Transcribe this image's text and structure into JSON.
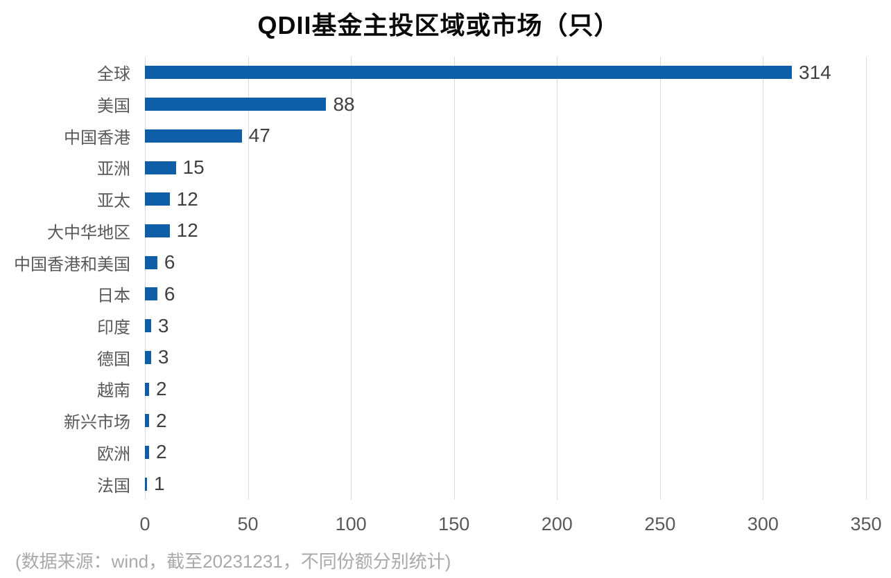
{
  "title": "QDII基金主投区域或市场（只）",
  "footnote": "(数据来源：wind，截至20231231，不同份额分别统计)",
  "colors": {
    "bar": "#0e5fa8",
    "gridline": "#d9d9d9",
    "title": "#0a0a0a",
    "category_label": "#595959",
    "value_label": "#404040",
    "axis_label": "#595959",
    "footnote": "#a9a9a9"
  },
  "chart_data": {
    "type": "bar",
    "orientation": "horizontal",
    "title": "QDII基金主投区域或市场（只）",
    "categories": [
      "全球",
      "美国",
      "中国香港",
      "亚洲",
      "亚太",
      "大中华地区",
      "中国香港和美国",
      "日本",
      "印度",
      "德国",
      "越南",
      "新兴市场",
      "欧洲",
      "法国"
    ],
    "values": [
      314,
      88,
      47,
      15,
      12,
      12,
      6,
      6,
      3,
      3,
      2,
      2,
      2,
      1
    ],
    "xlabel": "",
    "ylabel": "",
    "xlim": [
      0,
      350
    ],
    "x_ticks": [
      0,
      50,
      100,
      150,
      200,
      250,
      300,
      350
    ],
    "grid": "vertical-only",
    "data_labels": true,
    "legend": "none",
    "source_note": "(数据来源：wind，截至20231231，不同份额分别统计)"
  }
}
